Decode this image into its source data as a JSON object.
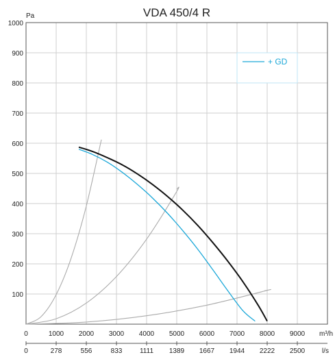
{
  "chart_data": {
    "type": "line",
    "title": "VDA 450/4 R",
    "ylabel": "Pa",
    "xlabel": "m³/h",
    "x2label": "l/s",
    "xlim": [
      0,
      10000
    ],
    "ylim": [
      0,
      1000
    ],
    "x_ticks": [
      0,
      1000,
      2000,
      3000,
      4000,
      5000,
      6000,
      7000,
      8000,
      9000
    ],
    "y_ticks": [
      100,
      200,
      300,
      400,
      500,
      600,
      700,
      800,
      900,
      1000
    ],
    "secondary_x_ticks": [
      {
        "m3h": 0,
        "label": "0"
      },
      {
        "m3h": 1000,
        "label": "278"
      },
      {
        "m3h": 2000,
        "label": "556"
      },
      {
        "m3h": 3000,
        "label": "833"
      },
      {
        "m3h": 4000,
        "label": "1111"
      },
      {
        "m3h": 5000,
        "label": "1389"
      },
      {
        "m3h": 6000,
        "label": "1667"
      },
      {
        "m3h": 7000,
        "label": "1944"
      },
      {
        "m3h": 8000,
        "label": "2222"
      },
      {
        "m3h": 9000,
        "label": "2500"
      }
    ],
    "grid": true,
    "legend_position": "top-right",
    "series": [
      {
        "color": "#111111",
        "x": [
          1750,
          2200,
          2700,
          3200,
          3700,
          4200,
          4700,
          5200,
          5700,
          6200,
          6700,
          7200,
          7700,
          8000
        ],
        "y": [
          587,
          573,
          552,
          528,
          498,
          463,
          423,
          378,
          327,
          270,
          208,
          140,
          63,
          10
        ]
      },
      {
        "name": "+ GD",
        "color": "#1aa7d8",
        "x": [
          1750,
          2200,
          2700,
          3200,
          3700,
          4200,
          4700,
          5200,
          5700,
          6200,
          6700,
          7200,
          7600
        ],
        "y": [
          580,
          563,
          537,
          503,
          463,
          418,
          367,
          310,
          248,
          180,
          110,
          44,
          10
        ]
      }
    ],
    "system_curves": [
      {
        "color": "#aaaaaa",
        "x": [
          0,
          500,
          1000,
          1500,
          2000,
          2500
        ],
        "y": [
          0,
          25,
          98,
          220,
          392,
          612
        ]
      },
      {
        "color": "#aaaaaa",
        "x": [
          0,
          1000,
          2000,
          3000,
          4000,
          5000,
          5000
        ],
        "y": [
          0,
          18,
          70,
          158,
          282,
          440,
          448
        ]
      },
      {
        "color": "#aaaaaa",
        "x": [
          0,
          2000,
          4000,
          6000,
          8000,
          7900
        ],
        "y": [
          0,
          7,
          28,
          63,
          112,
          110
        ]
      }
    ]
  }
}
